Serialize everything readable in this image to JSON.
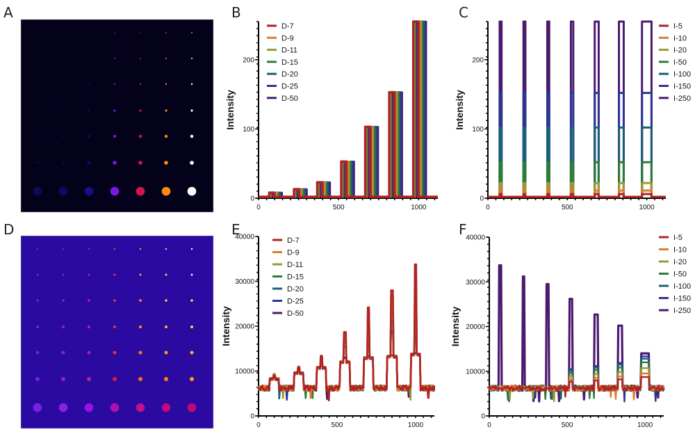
{
  "panels": {
    "A": {
      "letter": "A"
    },
    "B": {
      "letter": "B"
    },
    "C": {
      "letter": "C"
    },
    "D": {
      "letter": "D"
    },
    "E": {
      "letter": "E"
    },
    "F": {
      "letter": "F"
    }
  },
  "dot_images": [
    {
      "id": "A",
      "background": "#03021a",
      "columns": 7,
      "rows": 7,
      "column_colors": [
        "#100a55",
        "#0e0a60",
        "#1c0c80",
        "#7a18e0",
        "#d41450",
        "#ff8a10",
        "#ffffff"
      ],
      "column_brightness": [
        0.35,
        0.45,
        0.55,
        0.9,
        1,
        1,
        1
      ]
    },
    {
      "id": "D",
      "background": "#2a0aa0",
      "columns": 7,
      "rows": 7,
      "row_colors": [
        [
          "#7a20e0",
          "#8020e0",
          "#b020c0",
          "#e04a30",
          "#ff9a20",
          "#ffd040",
          "#ffffff"
        ],
        [
          "#7a20e0",
          "#8a20e0",
          "#b020c0",
          "#e05030",
          "#ffa020",
          "#ffd040",
          "#f0e0ff"
        ],
        [
          "#7a20e0",
          "#8a20e0",
          "#b020b0",
          "#e04a30",
          "#ff9a20",
          "#ffc030",
          "#ffe040"
        ],
        [
          "#7a20e0",
          "#8a20e0",
          "#b020b0",
          "#e03a30",
          "#ff8a20",
          "#ffb020",
          "#ffd020"
        ],
        [
          "#7a20e0",
          "#8a20e0",
          "#b020a0",
          "#e03040",
          "#ff7a10",
          "#ff9a10",
          "#ffb020"
        ],
        [
          "#7a20e0",
          "#8a20e0",
          "#b020a0",
          "#e01a40",
          "#ff6a10",
          "#ff8010",
          "#ff9a20"
        ],
        [
          "#7a20e0",
          "#8a20e0",
          "#9a10e8",
          "#b010b0",
          "#c0108a",
          "#c00880",
          "#c00878"
        ]
      ]
    }
  ],
  "chart_data": [
    {
      "id": "B",
      "type": "line",
      "title": "",
      "xlabel": "",
      "ylabel": "Intensity",
      "xlim": [
        0,
        1120
      ],
      "ylim": [
        0,
        255
      ],
      "xticks": [
        0,
        500,
        1000
      ],
      "xtick_labels": [
        "0",
        "500",
        "1000"
      ],
      "yticks": [
        0,
        100,
        200
      ],
      "ytick_labels": [
        "0",
        "100",
        "200"
      ],
      "legend_position": "top-left",
      "series": [
        {
          "name": "D-7",
          "color": "#b22222"
        },
        {
          "name": "D-9",
          "color": "#e07b2e"
        },
        {
          "name": "D-11",
          "color": "#9a9a30"
        },
        {
          "name": "D-15",
          "color": "#2e7a3a"
        },
        {
          "name": "D-20",
          "color": "#1a5f7a"
        },
        {
          "name": "D-25",
          "color": "#2e3590"
        },
        {
          "name": "D-50",
          "color": "#4b1a6e"
        }
      ],
      "peaks": {
        "centers": [
          100,
          255,
          400,
          550,
          700,
          850,
          1000
        ],
        "heights": [
          8,
          13,
          23,
          53,
          103,
          153,
          255
        ],
        "width": 60,
        "baseline": 2
      }
    },
    {
      "id": "C",
      "type": "line",
      "title": "",
      "xlabel": "",
      "ylabel": "Intensity",
      "xlim": [
        0,
        1120
      ],
      "ylim": [
        0,
        255
      ],
      "xticks": [
        0,
        500,
        1000
      ],
      "xtick_labels": [
        "0",
        "500",
        "1000"
      ],
      "yticks": [
        0,
        100,
        200
      ],
      "ytick_labels": [
        "0",
        "100",
        "200"
      ],
      "legend_position": "top-right",
      "series": [
        {
          "name": "I-5",
          "color": "#b22222",
          "level": 6
        },
        {
          "name": "I-10",
          "color": "#e07b2e",
          "level": 11
        },
        {
          "name": "I-20",
          "color": "#9a9a30",
          "level": 22
        },
        {
          "name": "I-50",
          "color": "#2e7a3a",
          "level": 52
        },
        {
          "name": "I-100",
          "color": "#1a5f7a",
          "level": 102
        },
        {
          "name": "I-150",
          "color": "#2e3590",
          "level": 152
        },
        {
          "name": "I-250",
          "color": "#4b1a6e",
          "level": 255
        }
      ],
      "peaks": {
        "centers": [
          80,
          230,
          380,
          530,
          685,
          840,
          1000
        ],
        "widths": [
          12,
          12,
          12,
          15,
          25,
          30,
          60
        ],
        "baseline": 2
      }
    },
    {
      "id": "E",
      "type": "line",
      "title": "",
      "xlabel": "",
      "ylabel": "Intensity",
      "xlim": [
        0,
        1120
      ],
      "ylim": [
        0,
        40000
      ],
      "xticks": [
        0,
        500,
        1000
      ],
      "xtick_labels": [
        "0",
        "500",
        "1000"
      ],
      "yticks": [
        0,
        10000,
        20000,
        30000,
        40000
      ],
      "ytick_labels": [
        "0",
        "10000",
        "20000",
        "30000",
        "40000"
      ],
      "legend_position": "top-left",
      "series": [
        {
          "name": "D-7",
          "color": "#b22222"
        },
        {
          "name": "D-9",
          "color": "#e07b2e"
        },
        {
          "name": "D-11",
          "color": "#9a9a30"
        },
        {
          "name": "D-15",
          "color": "#2e7a3a"
        },
        {
          "name": "D-20",
          "color": "#1a5f7a"
        },
        {
          "name": "D-25",
          "color": "#2e3590"
        },
        {
          "name": "D-50",
          "color": "#4b1a6e"
        }
      ],
      "peaks": {
        "centers": [
          100,
          255,
          400,
          550,
          700,
          850,
          1000
        ],
        "shoulder_heights": [
          8200,
          9500,
          10700,
          12000,
          12900,
          13200,
          13700
        ],
        "spike_tops": [
          [
            9000,
            9100,
            9200,
            9300,
            9300,
            9200,
            8800
          ],
          [
            10800,
            10900,
            10900,
            11000,
            10900,
            10600,
            10000
          ],
          [
            13400,
            13300,
            13200,
            13000,
            12700,
            12400,
            11500
          ],
          [
            18700,
            18300,
            17500,
            17300,
            16500,
            15500,
            13000
          ],
          [
            24200,
            22800,
            21200,
            21200,
            19400,
            17600,
            13300
          ],
          [
            28000,
            26800,
            25800,
            23500,
            21000,
            19000,
            13500
          ],
          [
            33800,
            31400,
            29500,
            26200,
            22700,
            20200,
            14000
          ]
        ],
        "width": 60,
        "baseline": 6200
      }
    },
    {
      "id": "F",
      "type": "line",
      "title": "",
      "xlabel": "",
      "ylabel": "Intensity",
      "xlim": [
        0,
        1120
      ],
      "ylim": [
        0,
        40000
      ],
      "xticks": [
        0,
        500,
        1000
      ],
      "xtick_labels": [
        "0",
        "500",
        "1000"
      ],
      "yticks": [
        0,
        10000,
        20000,
        30000,
        40000
      ],
      "ytick_labels": [
        "0",
        "10000",
        "20000",
        "30000",
        "40000"
      ],
      "legend_position": "top-right",
      "series": [
        {
          "name": "I-5",
          "color": "#b22222",
          "plateau": 8700
        },
        {
          "name": "I-10",
          "color": "#e07b2e",
          "plateau": 9500
        },
        {
          "name": "I-20",
          "color": "#9a9a30",
          "plateau": 10700
        },
        {
          "name": "I-50",
          "color": "#2e7a3a",
          "plateau": 12000
        },
        {
          "name": "I-100",
          "color": "#1a5f7a",
          "plateau": 12800
        },
        {
          "name": "I-150",
          "color": "#2e3590",
          "plateau": 13300
        },
        {
          "name": "I-250",
          "color": "#4b1a6e",
          "plateau": 14000
        }
      ],
      "peaks": {
        "centers": [
          70,
          220,
          375,
          525,
          685,
          840,
          1000
        ],
        "tops": [
          33700,
          31200,
          29500,
          26200,
          22700,
          20200,
          14000
        ],
        "widths": [
          12,
          12,
          14,
          18,
          22,
          30,
          50
        ],
        "baseline": 6200
      }
    }
  ]
}
